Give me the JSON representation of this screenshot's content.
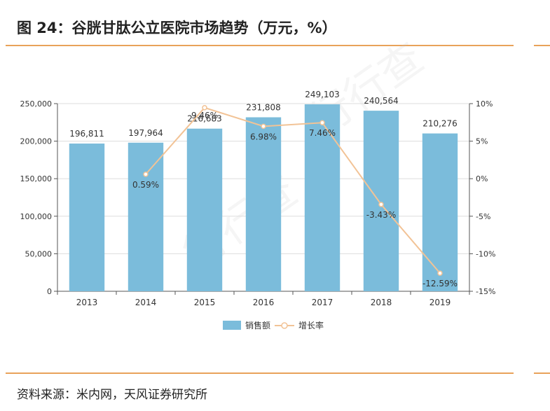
{
  "title": "图 24：谷胱甘肽公立医院市场趋势（万元，%）",
  "source": "资料来源：米内网，天风证券研究所",
  "watermark": "行行查",
  "colors": {
    "bar": "#7BBCDB",
    "line": "#F2C396",
    "rule": "#E8A25A",
    "grid": "#DDDDDD",
    "axis": "#555555"
  },
  "chart_data": {
    "type": "bar",
    "categories": [
      "2013",
      "2014",
      "2015",
      "2016",
      "2017",
      "2018",
      "2019"
    ],
    "series": [
      {
        "name": "销售额",
        "type": "bar",
        "axis": "left",
        "values": [
          196811,
          197964,
          216683,
          231808,
          249103,
          240564,
          210276
        ],
        "labels": [
          "196,811",
          "197,964",
          "216,683",
          "231,808",
          "249,103",
          "240,564",
          "210,276"
        ]
      },
      {
        "name": "增长率",
        "type": "line",
        "axis": "right",
        "values": [
          null,
          0.59,
          9.46,
          6.98,
          7.46,
          -3.43,
          -12.59
        ],
        "labels": [
          "",
          "0.59%",
          "9.46%",
          "6.98%",
          "7.46%",
          "-3.43%",
          "-12.59%"
        ]
      }
    ],
    "ylim_left": [
      0,
      250000
    ],
    "yticks_left": [
      "0",
      "50,000",
      "100,000",
      "150,000",
      "200,000",
      "250,000"
    ],
    "ylim_right": [
      -15,
      10
    ],
    "yticks_right": [
      "-15%",
      "-10%",
      "-5%",
      "0%",
      "5%",
      "10%"
    ],
    "grid": true,
    "legend": "bottom-center"
  }
}
